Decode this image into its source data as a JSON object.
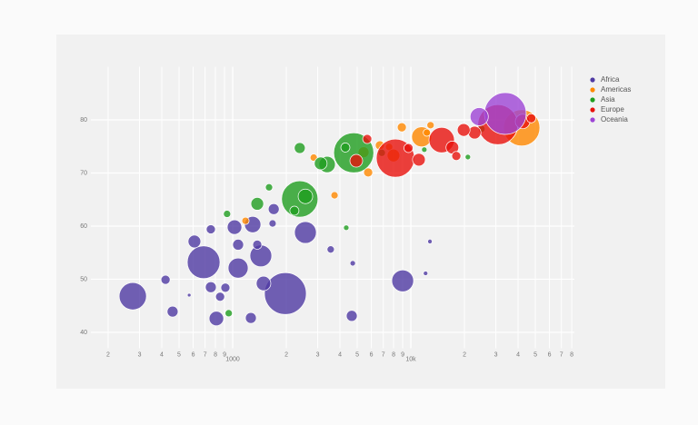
{
  "chart_data": {
    "type": "scatter",
    "x_log": true,
    "grid": true,
    "legend": "right",
    "xlim": [
      160,
      82800
    ],
    "ylim": [
      37,
      90
    ],
    "xticks": [
      {
        "value": 200,
        "label": "2"
      },
      {
        "value": 300,
        "label": "3"
      },
      {
        "value": 400,
        "label": "4"
      },
      {
        "value": 500,
        "label": "5"
      },
      {
        "value": 600,
        "label": "6"
      },
      {
        "value": 700,
        "label": "7"
      },
      {
        "value": 800,
        "label": "8"
      },
      {
        "value": 900,
        "label": "9"
      },
      1000,
      {
        "value": 2000,
        "label": "2"
      },
      {
        "value": 3000,
        "label": "3"
      },
      {
        "value": 4000,
        "label": "4"
      },
      {
        "value": 5000,
        "label": "5"
      },
      {
        "value": 6000,
        "label": "6"
      },
      {
        "value": 7000,
        "label": "7"
      },
      {
        "value": 8000,
        "label": "8"
      },
      {
        "value": 9000,
        "label": "9"
      },
      {
        "value": 10000,
        "label": "10k"
      },
      {
        "value": 20000,
        "label": "2"
      },
      {
        "value": 30000,
        "label": "3"
      },
      {
        "value": 40000,
        "label": "4"
      },
      {
        "value": 50000,
        "label": "5"
      },
      {
        "value": 60000,
        "label": "6"
      },
      {
        "value": 70000,
        "label": "7"
      },
      {
        "value": 80000,
        "label": "8"
      }
    ],
    "yticks": [
      40,
      50,
      60,
      70,
      80
    ],
    "series": [
      {
        "name": "Africa",
        "color": "#4f3aa3",
        "x": [
          275,
          687,
          1976,
          1073,
          1439,
          2560,
          9000,
          610,
          1024,
          1295,
          1700,
          810,
          1265,
          4660,
          460,
          420,
          754,
          910,
          850,
          1490,
          1073,
          1374,
          3550,
          4720,
          12800,
          12100,
          754,
          1675,
          570
        ],
        "values": [
          46.8,
          53.2,
          47.3,
          52.1,
          54.4,
          58.8,
          49.7,
          57.1,
          59.8,
          60.3,
          63.2,
          42.6,
          42.7,
          43.1,
          43.9,
          49.9,
          48.5,
          48.4,
          46.7,
          49.2,
          56.5,
          56.5,
          55.6,
          53.0,
          57.1,
          51.1,
          59.4,
          60.5,
          47.0
        ],
        "sizes": [
          30,
          36,
          46,
          22,
          24,
          24,
          24,
          14,
          16,
          18,
          12,
          16,
          12,
          12,
          12,
          10,
          12,
          10,
          10,
          16,
          12,
          10,
          8,
          6,
          5,
          5,
          10,
          8,
          4
        ]
      },
      {
        "name": "Americas",
        "color": "#ff8800",
        "x": [
          41900,
          11500,
          8900,
          12300,
          6700,
          5430,
          3730,
          2850,
          5760,
          7550,
          12900,
          7990,
          1180
        ],
        "values": [
          78.5,
          76.8,
          78.6,
          77.6,
          75.2,
          73.9,
          65.8,
          72.9,
          70.1,
          74.9,
          79.0,
          73.3,
          61.0
        ],
        "sizes": [
          40,
          22,
          10,
          8,
          10,
          12,
          8,
          8,
          10,
          8,
          8,
          14,
          8
        ]
      },
      {
        "name": "Asia",
        "color": "#1f9e1f",
        "x": [
          2380,
          4780,
          2560,
          3390,
          2220,
          2380,
          1374,
          1600,
          930,
          950,
          4340,
          3120,
          20900,
          6870,
          4290,
          24900,
          11900
        ],
        "values": [
          65.1,
          73.8,
          65.6,
          71.6,
          62.9,
          74.7,
          64.2,
          67.3,
          62.3,
          43.6,
          59.7,
          71.8,
          73.0,
          73.8,
          74.8,
          78.3,
          74.4
        ],
        "sizes": [
          40,
          44,
          16,
          18,
          10,
          12,
          14,
          8,
          8,
          8,
          6,
          14,
          6,
          8,
          10,
          8,
          6
        ]
      },
      {
        "name": "Europe",
        "color": "#e8120c",
        "x": [
          8190,
          30800,
          14900,
          17100,
          22800,
          19800,
          42400,
          47400,
          11100,
          5690,
          9700,
          18000,
          4940
        ],
        "values": [
          72.8,
          79.1,
          76.2,
          74.8,
          77.6,
          78.1,
          79.7,
          80.3,
          72.5,
          76.4,
          74.7,
          73.2,
          72.3
        ],
        "sizes": [
          42,
          44,
          28,
          14,
          14,
          14,
          16,
          10,
          14,
          10,
          10,
          10,
          14
        ]
      },
      {
        "name": "Oceania",
        "color": "#9d45d6",
        "x": [
          33900,
          24200
        ],
        "values": [
          81.2,
          80.6
        ],
        "sizes": [
          46,
          20
        ]
      }
    ]
  }
}
